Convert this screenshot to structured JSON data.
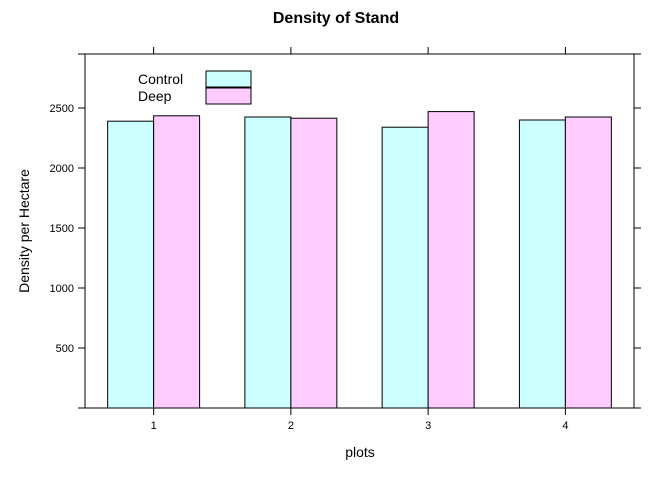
{
  "chart_data": {
    "type": "bar",
    "title": "Density of Stand",
    "xlabel": "plots",
    "ylabel": "Density per Hectare",
    "categories": [
      "1",
      "2",
      "3",
      "4"
    ],
    "series": [
      {
        "name": "Control",
        "values": [
          2390,
          2425,
          2340,
          2400
        ],
        "color": "#ccffff"
      },
      {
        "name": "Deep",
        "values": [
          2435,
          2415,
          2470,
          2425
        ],
        "color": "#ffccff"
      }
    ],
    "yticks": [
      500,
      1000,
      1500,
      2000,
      2500
    ],
    "ylim": [
      0,
      2950
    ],
    "grid": false,
    "legend_position": "top-left"
  }
}
